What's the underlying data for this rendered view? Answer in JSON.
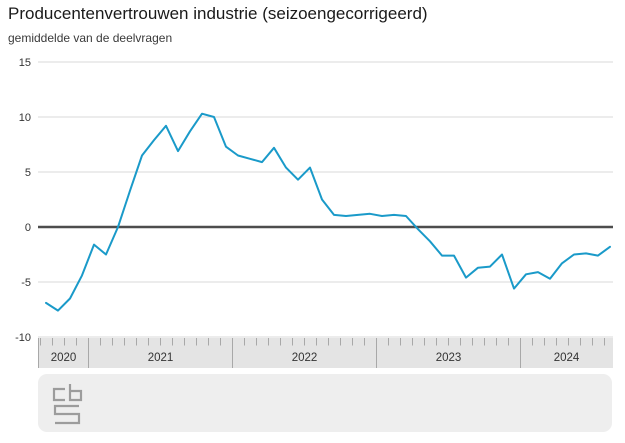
{
  "header": {
    "title": "Producentenvertrouwen industrie (seizoengecorrigeerd)",
    "subtitle": "gemiddelde van de deelvragen"
  },
  "chart_data": {
    "type": "line",
    "title": "Producentenvertrouwen industrie (seizoengecorrigeerd)",
    "subtitle": "gemiddelde van de deelvragen",
    "x": [
      "2020-09",
      "2020-10",
      "2020-11",
      "2020-12",
      "2021-01",
      "2021-02",
      "2021-03",
      "2021-04",
      "2021-05",
      "2021-06",
      "2021-07",
      "2021-08",
      "2021-09",
      "2021-10",
      "2021-11",
      "2021-12",
      "2022-01",
      "2022-02",
      "2022-03",
      "2022-04",
      "2022-05",
      "2022-06",
      "2022-07",
      "2022-08",
      "2022-09",
      "2022-10",
      "2022-11",
      "2022-12",
      "2023-01",
      "2023-02",
      "2023-03",
      "2023-04",
      "2023-05",
      "2023-06",
      "2023-07",
      "2023-08",
      "2023-09",
      "2023-10",
      "2023-11",
      "2023-12",
      "2024-01",
      "2024-02",
      "2024-03",
      "2024-04",
      "2024-05",
      "2024-06",
      "2024-07",
      "2024-08"
    ],
    "series": [
      {
        "name": "Producentenvertrouwen industrie",
        "values": [
          -6.9,
          -7.6,
          -6.5,
          -4.4,
          -1.6,
          -2.5,
          0.0,
          3.3,
          6.5,
          7.9,
          9.2,
          6.9,
          8.7,
          10.3,
          10.0,
          7.3,
          6.5,
          6.2,
          5.9,
          7.2,
          5.4,
          4.3,
          5.4,
          2.5,
          1.1,
          1.0,
          1.1,
          1.2,
          1.0,
          1.1,
          1.0,
          -0.2,
          -1.3,
          -2.6,
          -2.6,
          -4.6,
          -3.7,
          -3.6,
          -2.5,
          -5.6,
          -4.3,
          -4.1,
          -4.7,
          -3.3,
          -2.5,
          -2.4,
          -2.6,
          -1.8
        ]
      }
    ],
    "ylim": [
      -10,
      15
    ],
    "yticks": [
      "15",
      "10",
      "5",
      "0",
      "-5",
      "-10"
    ],
    "xticks": [
      "2020",
      "2021",
      "2022",
      "2023",
      "2024"
    ],
    "grid": true,
    "legend": false,
    "line_color": "#1a9ac9",
    "zero_line_color": "#4d4d4d",
    "grid_color": "#d9d9d9",
    "axis_band_color": "#e4e4e4",
    "tick_color": "#a8a8a8"
  },
  "footer": {
    "logo": "cbs-logo"
  }
}
